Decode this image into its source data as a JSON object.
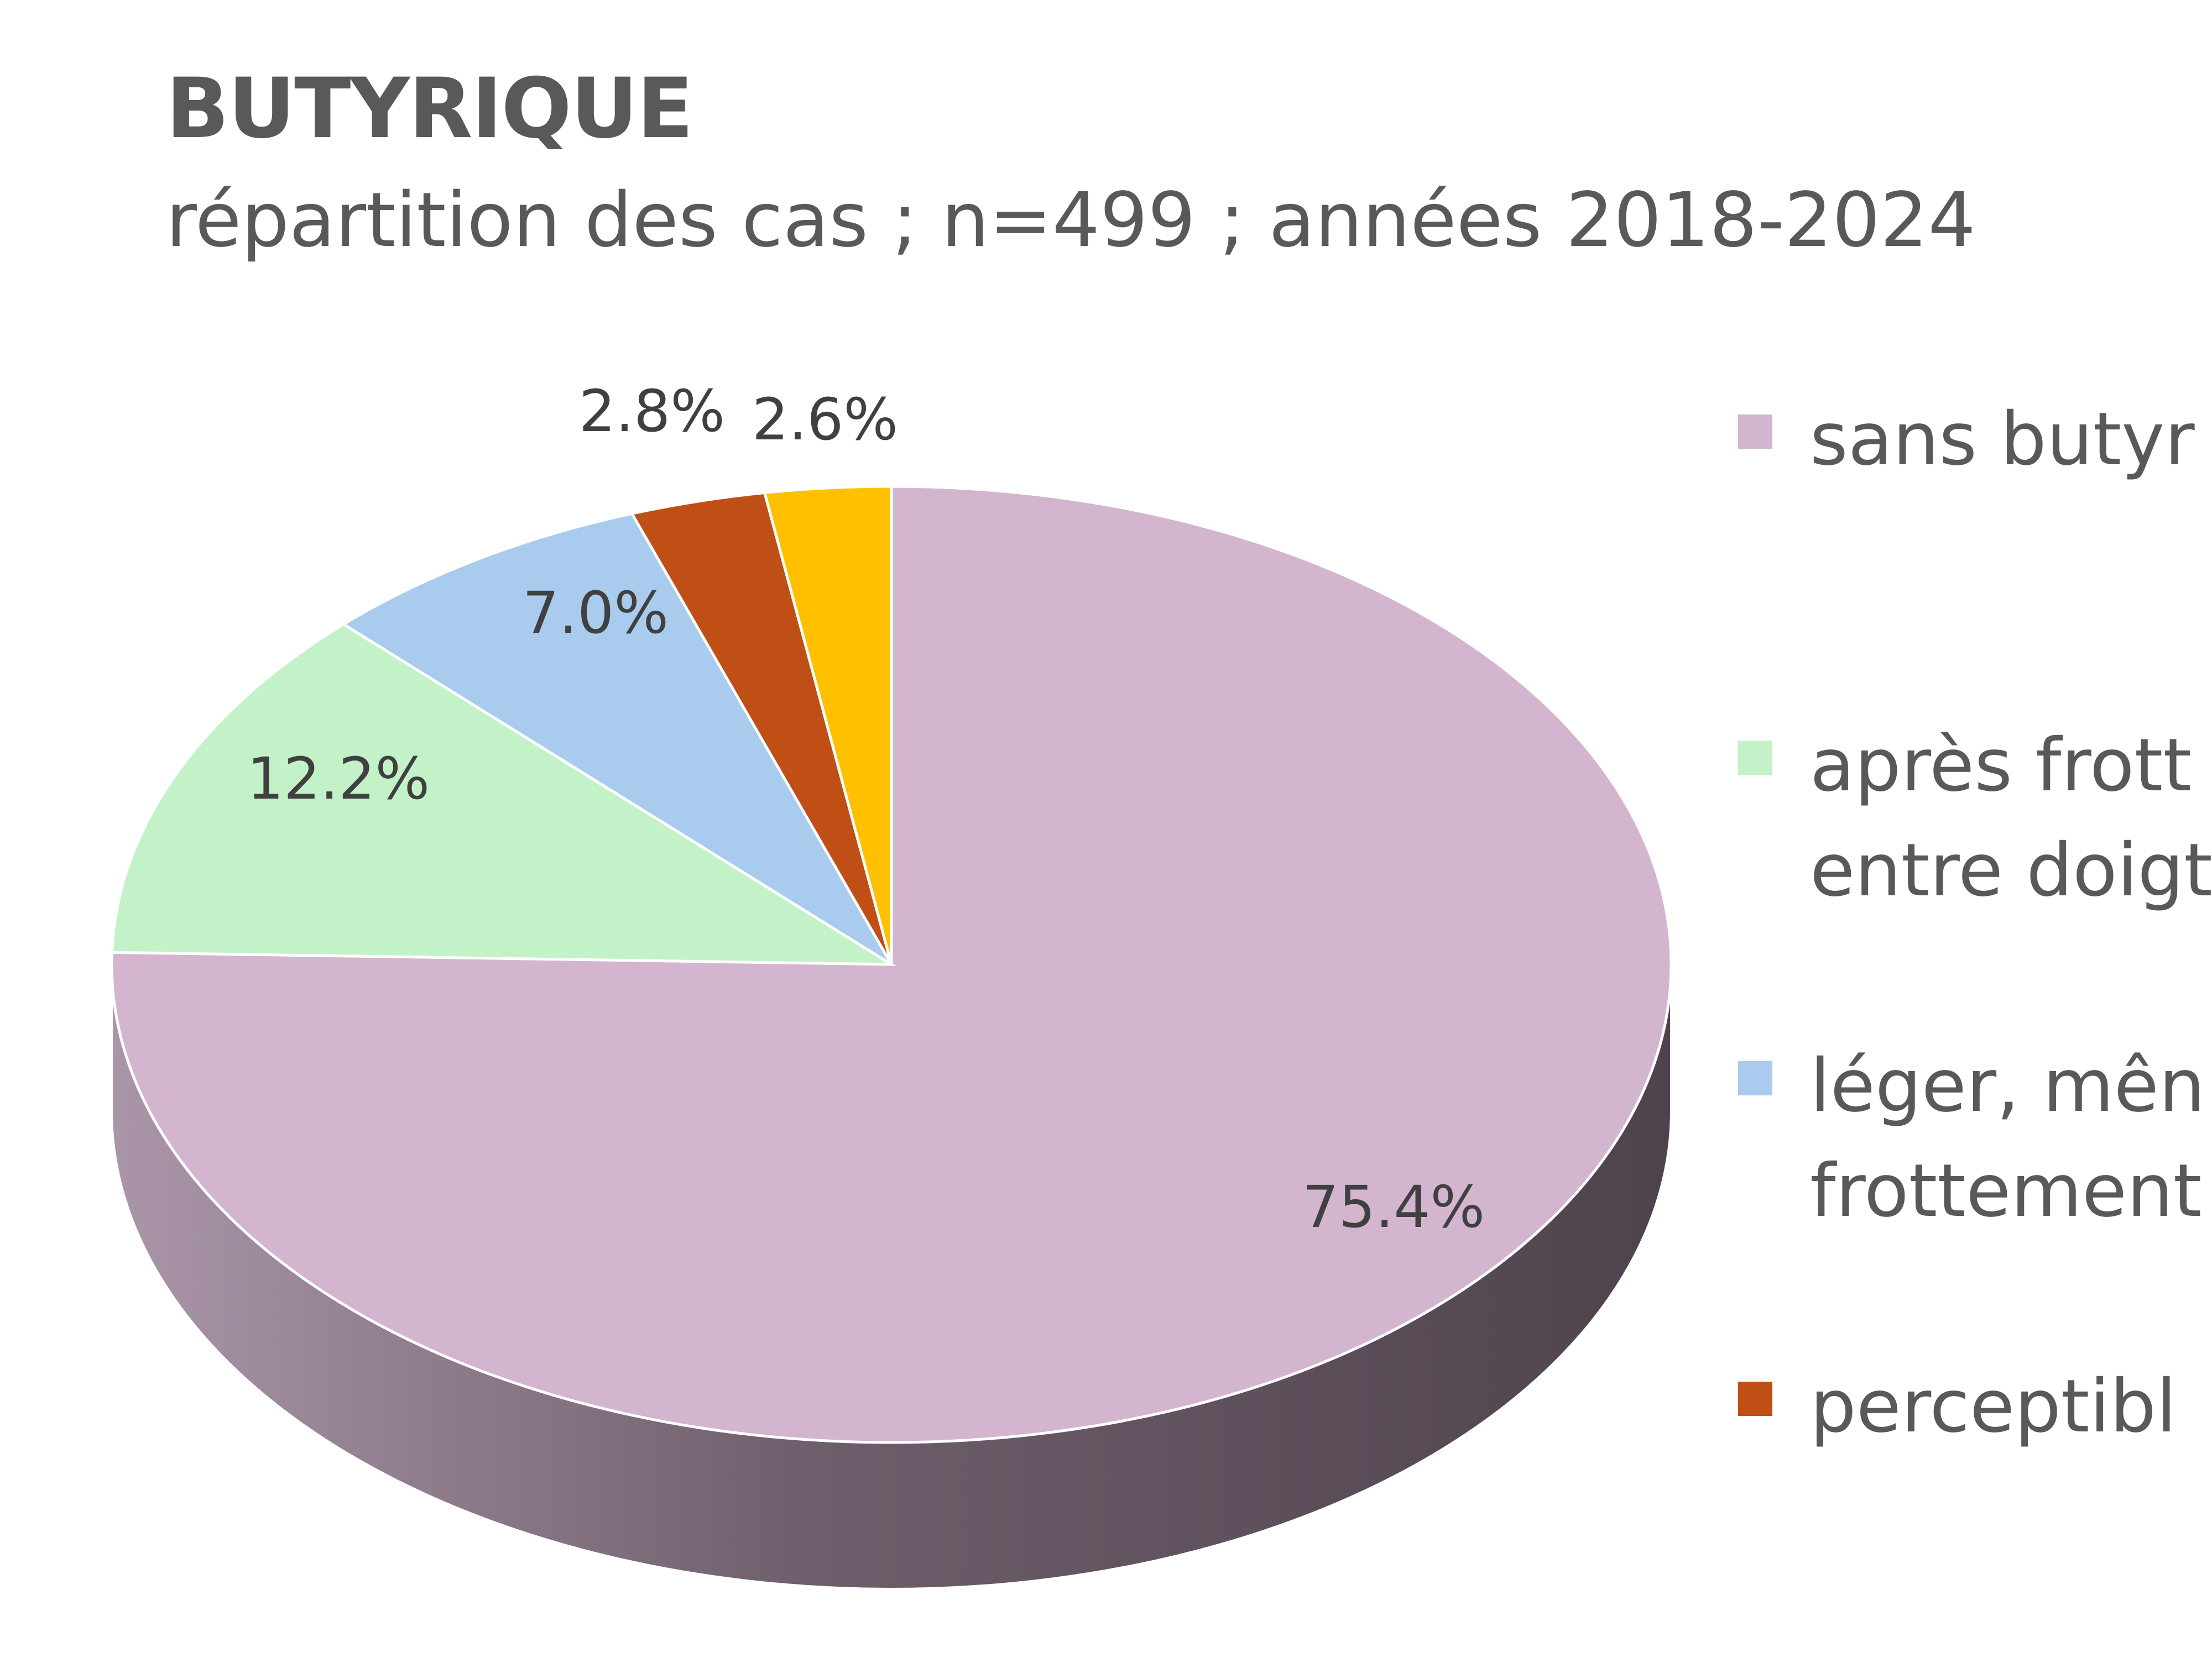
{
  "chart_data": {
    "type": "pie",
    "title": "BUTYRIQUE",
    "subtitle": "répartition des cas ; n=499 ; années 2018-2024",
    "slices": [
      {
        "legend": "sans butyr",
        "value": 75.4,
        "label": "75.4%",
        "color": "#D3B5CF"
      },
      {
        "legend": "après frott\nentre doigt",
        "value": 12.2,
        "label": "12.2%",
        "color": "#C3F2C8"
      },
      {
        "legend": "léger, mên\nfrottement",
        "value": 7.0,
        "label": "7.0%",
        "color": "#A9CBEE"
      },
      {
        "legend": "perceptibl",
        "value": 2.8,
        "label": "2.8%",
        "color": "#C04F15"
      },
      {
        "legend": null,
        "value": 2.6,
        "label": "2.6%",
        "color": "#FFC000"
      }
    ],
    "legend_position": "right",
    "style": "3d"
  }
}
